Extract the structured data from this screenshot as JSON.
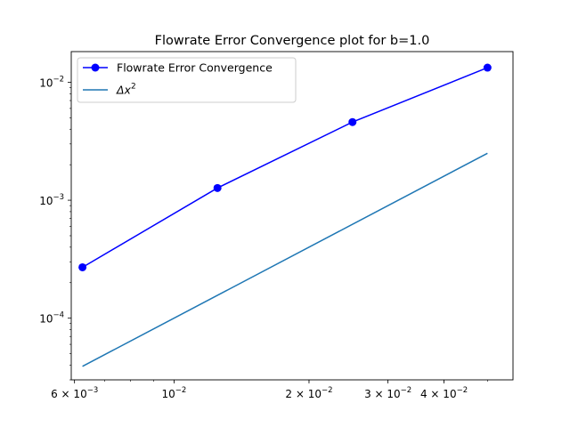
{
  "chart_data": {
    "type": "line",
    "title": "Flowrate Error Convergence plot for b=1.0",
    "xlabel": "",
    "ylabel": "",
    "xscale": "log",
    "yscale": "log",
    "xlim": [
      0.0059,
      0.057
    ],
    "ylim": [
      3e-05,
      0.0182
    ],
    "grid": false,
    "legend_position": "upper-left",
    "x_ticks": [
      {
        "value": 0.006,
        "base": "6 × 10",
        "exp": "−3"
      },
      {
        "value": 0.01,
        "base": "10",
        "exp": "−2"
      },
      {
        "value": 0.02,
        "base": "2 × 10",
        "exp": "−2"
      },
      {
        "value": 0.03,
        "base": "3 × 10",
        "exp": "−2"
      },
      {
        "value": 0.04,
        "base": "4 × 10",
        "exp": "−2"
      }
    ],
    "y_ticks": [
      {
        "value": 0.0001,
        "base": "10",
        "exp": "−4"
      },
      {
        "value": 0.001,
        "base": "10",
        "exp": "−3"
      },
      {
        "value": 0.01,
        "base": "10",
        "exp": "−2"
      }
    ],
    "series": [
      {
        "name": "Flowrate Error Convergence",
        "color": "#0000ff",
        "marker": "circle",
        "x": [
          0.00625,
          0.0125,
          0.025,
          0.05
        ],
        "y": [
          0.00027,
          0.00127,
          0.0046,
          0.0133
        ]
      },
      {
        "name": "Δx²",
        "legend_base": "Δx",
        "legend_exp": "2",
        "color": "#1f77b4",
        "marker": "none",
        "x": [
          0.00625,
          0.05
        ],
        "y": [
          3.90625e-05,
          0.0025
        ]
      }
    ]
  }
}
